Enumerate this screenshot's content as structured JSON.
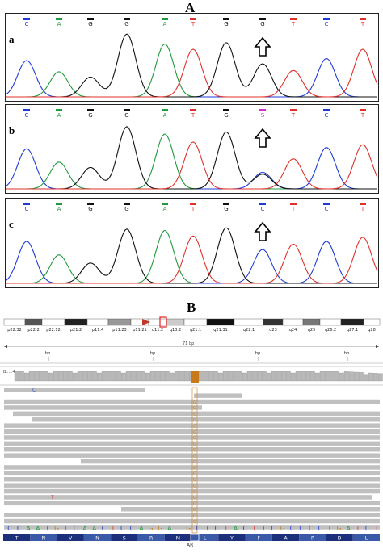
{
  "figure": {
    "label_a": "A",
    "label_b": "B"
  },
  "colors": {
    "A": "#1f9a3c",
    "C": "#1f3bd6",
    "G": "#111111",
    "T": "#e0302a",
    "S": "#cc33cc",
    "mismatch": "#c87a1a"
  },
  "chromatograms": [
    {
      "letter": "a",
      "bases": [
        "C",
        "A",
        "G",
        "G",
        "A",
        "T",
        "G",
        "G",
        "T",
        "C",
        "T"
      ],
      "arrow_index": 7
    },
    {
      "letter": "b",
      "bases": [
        "C",
        "A",
        "G",
        "G",
        "A",
        "T",
        "G",
        "S",
        "T",
        "C",
        "T"
      ],
      "arrow_index": 7
    },
    {
      "letter": "c",
      "bases": [
        "C",
        "A",
        "G",
        "G",
        "A",
        "T",
        "G",
        "C",
        "T",
        "C",
        "T"
      ],
      "arrow_index": 7
    }
  ],
  "igv": {
    "cytobands": [
      "p22.32",
      "p22.2",
      "p22.12",
      "p21.2",
      "p11.4",
      "p11.23",
      "p11.21",
      "q11.2",
      "q13.2",
      "q21.1",
      "q21.31",
      "q22.1",
      "q23",
      "q24",
      "q25",
      "q26.2",
      "q27.1",
      "q28"
    ],
    "ruler_label": "71 bp",
    "track_label": "B.....4",
    "reference_sequence": [
      "C",
      "C",
      "A",
      "A",
      "T",
      "G",
      "T",
      "C",
      "A",
      "A",
      "C",
      "T",
      "C",
      "C",
      "A",
      "G",
      "G",
      "A",
      "T",
      "G",
      "C",
      "T",
      "C",
      "T",
      "A",
      "C",
      "T",
      "T",
      "C",
      "G",
      "C",
      "C",
      "C",
      "C",
      "T",
      "G",
      "A",
      "T",
      "C",
      "T"
    ],
    "amino_acids": [
      "T",
      "N",
      "V",
      "N",
      "S",
      "R",
      "M",
      "L",
      "Y",
      "F",
      "A",
      "P",
      "D",
      "L"
    ],
    "gene": "AR",
    "read_mismatch_base": "G",
    "stray_bases": [
      {
        "text": "C"
      },
      {
        "text": "T"
      }
    ]
  }
}
